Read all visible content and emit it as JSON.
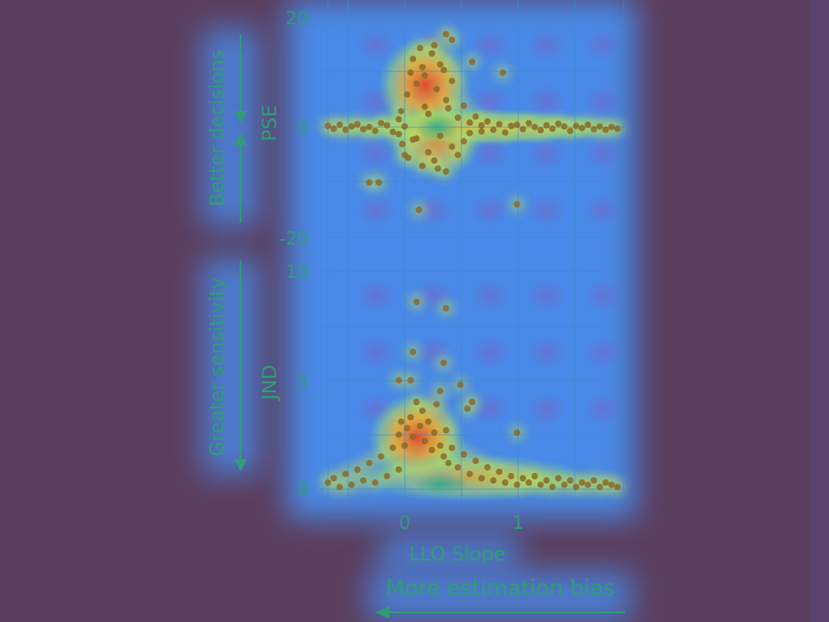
{
  "chart_data": [
    {
      "type": "scatter",
      "panel": "top",
      "ylabel": "PSE",
      "side_annotation": "Better decisions",
      "ylim": [
        -20,
        20
      ],
      "ytick_labels": [
        "20",
        "0",
        "-20"
      ],
      "yticks": [
        20,
        0,
        -20
      ],
      "xlim": [
        -0.6,
        1.9
      ],
      "grid": true,
      "series": [
        {
          "points": [
            [
              -0.6,
              0.3
            ],
            [
              -0.55,
              -0.2
            ],
            [
              -0.5,
              0.5
            ],
            [
              -0.45,
              -0.4
            ],
            [
              -0.4,
              0.2
            ],
            [
              -0.35,
              0.6
            ],
            [
              -0.3,
              -0.3
            ],
            [
              -0.25,
              0.1
            ],
            [
              -0.2,
              -0.6
            ],
            [
              -0.15,
              0.8
            ],
            [
              -0.1,
              0.4
            ],
            [
              -0.05,
              -0.8
            ],
            [
              0.0,
              1.5
            ],
            [
              0.0,
              -1.2
            ],
            [
              0.02,
              3.0
            ],
            [
              0.03,
              -3.0
            ],
            [
              0.05,
              0.2
            ],
            [
              0.07,
              6.0
            ],
            [
              0.08,
              -5.5
            ],
            [
              0.1,
              10.0
            ],
            [
              0.12,
              12.5
            ],
            [
              0.15,
              8.0
            ],
            [
              0.15,
              -2.0
            ],
            [
              0.18,
              14.5
            ],
            [
              0.2,
              11.0
            ],
            [
              0.2,
              -7.0
            ],
            [
              0.22,
              9.5
            ],
            [
              0.25,
              2.5
            ],
            [
              0.25,
              -4.5
            ],
            [
              0.28,
              13.5
            ],
            [
              0.3,
              15.0
            ],
            [
              0.3,
              -6.0
            ],
            [
              0.32,
              7.0
            ],
            [
              0.35,
              11.5
            ],
            [
              0.35,
              -1.5
            ],
            [
              0.38,
              10.5
            ],
            [
              0.4,
              5.0
            ],
            [
              0.4,
              -8.0
            ],
            [
              0.42,
              3.5
            ],
            [
              0.45,
              8.5
            ],
            [
              0.45,
              -3.5
            ],
            [
              0.5,
              1.8
            ],
            [
              0.5,
              -5.0
            ],
            [
              0.55,
              4.0
            ],
            [
              0.55,
              -2.5
            ],
            [
              0.6,
              0.9
            ],
            [
              0.6,
              -1.0
            ],
            [
              0.65,
              2.0
            ],
            [
              0.7,
              0.4
            ],
            [
              0.7,
              -0.7
            ],
            [
              0.75,
              1.1
            ],
            [
              0.8,
              -0.4
            ],
            [
              0.85,
              0.6
            ],
            [
              0.9,
              -0.9
            ],
            [
              0.95,
              0.3
            ],
            [
              1.0,
              0.5
            ],
            [
              1.05,
              -0.3
            ],
            [
              1.1,
              0.8
            ],
            [
              1.15,
              0.1
            ],
            [
              1.2,
              -0.5
            ],
            [
              1.25,
              0.4
            ],
            [
              1.3,
              -0.2
            ],
            [
              1.35,
              0.7
            ],
            [
              1.4,
              0.2
            ],
            [
              1.45,
              -0.6
            ],
            [
              1.5,
              0.3
            ],
            [
              1.55,
              -0.1
            ],
            [
              1.6,
              0.5
            ],
            [
              1.65,
              -0.3
            ],
            [
              1.7,
              0.2
            ],
            [
              1.75,
              -0.4
            ],
            [
              1.8,
              0.1
            ],
            [
              1.85,
              -0.2
            ],
            [
              0.62,
              12.0
            ],
            [
              -0.25,
              -10.0
            ],
            [
              -0.17,
              -10.0
            ],
            [
              1.0,
              -14.0
            ],
            [
              0.4,
              17.0
            ],
            [
              0.45,
              16.0
            ],
            [
              0.88,
              10.0
            ],
            [
              0.17,
              -15.0
            ],
            [
              0.12,
              -2.2
            ],
            [
              0.22,
              3.8
            ],
            [
              0.05,
              -5.0
            ],
            [
              0.33,
              -7.5
            ]
          ]
        }
      ]
    },
    {
      "type": "scatter",
      "panel": "bottom",
      "ylabel": "JND",
      "side_annotation": "Greater sensitivity",
      "ylim": [
        0,
        10
      ],
      "ytick_labels": [
        "10",
        "5",
        "0"
      ],
      "yticks": [
        10,
        5,
        0
      ],
      "xlim": [
        -0.6,
        1.9
      ],
      "x_ticks": [
        0,
        1
      ],
      "x_tick_labels": [
        "0",
        "1"
      ],
      "xlabel": "LLO Slope",
      "bottom_annotation": "More estimation bias",
      "grid": true,
      "series": [
        {
          "points": [
            [
              -0.6,
              0.3
            ],
            [
              -0.55,
              0.5
            ],
            [
              -0.5,
              0.1
            ],
            [
              -0.45,
              0.7
            ],
            [
              -0.4,
              0.2
            ],
            [
              -0.35,
              0.9
            ],
            [
              -0.3,
              0.4
            ],
            [
              -0.25,
              1.2
            ],
            [
              -0.2,
              0.3
            ],
            [
              -0.15,
              1.5
            ],
            [
              -0.1,
              0.6
            ],
            [
              -0.05,
              1.9
            ],
            [
              0.0,
              2.5
            ],
            [
              0.0,
              0.9
            ],
            [
              0.02,
              3.1
            ],
            [
              0.05,
              2.0
            ],
            [
              0.07,
              2.8
            ],
            [
              0.1,
              3.3
            ],
            [
              0.12,
              2.4
            ],
            [
              0.15,
              4.0
            ],
            [
              0.18,
              2.9
            ],
            [
              0.2,
              3.6
            ],
            [
              0.22,
              2.2
            ],
            [
              0.25,
              3.1
            ],
            [
              0.28,
              1.8
            ],
            [
              0.3,
              2.6
            ],
            [
              0.32,
              3.9
            ],
            [
              0.35,
              2.0
            ],
            [
              0.38,
              1.5
            ],
            [
              0.4,
              2.7
            ],
            [
              0.42,
              1.2
            ],
            [
              0.45,
              1.9
            ],
            [
              0.5,
              1.0
            ],
            [
              0.55,
              1.6
            ],
            [
              0.6,
              0.7
            ],
            [
              0.65,
              1.3
            ],
            [
              0.7,
              0.5
            ],
            [
              0.75,
              1.0
            ],
            [
              0.8,
              0.4
            ],
            [
              0.85,
              0.8
            ],
            [
              0.9,
              0.3
            ],
            [
              0.95,
              0.6
            ],
            [
              1.0,
              0.2
            ],
            [
              1.05,
              0.5
            ],
            [
              1.1,
              0.3
            ],
            [
              1.15,
              0.6
            ],
            [
              1.2,
              0.2
            ],
            [
              1.25,
              0.4
            ],
            [
              1.3,
              0.1
            ],
            [
              1.35,
              0.5
            ],
            [
              1.4,
              0.2
            ],
            [
              1.45,
              0.4
            ],
            [
              1.5,
              0.1
            ],
            [
              1.55,
              0.3
            ],
            [
              1.6,
              0.2
            ],
            [
              1.65,
              0.4
            ],
            [
              1.7,
              0.1
            ],
            [
              1.75,
              0.3
            ],
            [
              1.8,
              0.2
            ],
            [
              1.85,
              0.1
            ],
            [
              0.15,
              8.6
            ],
            [
              0.4,
              8.3
            ],
            [
              0.12,
              6.3
            ],
            [
              0.38,
              5.8
            ],
            [
              0.0,
              5.0
            ],
            [
              0.1,
              5.0
            ],
            [
              0.62,
              4.0
            ],
            [
              0.58,
              3.7
            ],
            [
              0.35,
              4.5
            ],
            [
              1.0,
              2.6
            ],
            [
              0.52,
              4.8
            ]
          ]
        }
      ]
    }
  ]
}
